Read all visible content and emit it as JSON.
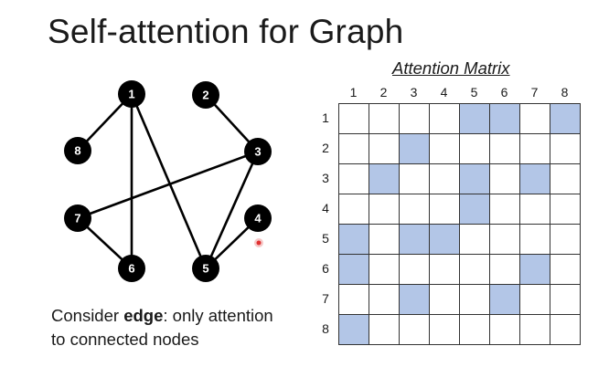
{
  "title": "Self-attention for Graph",
  "caption": {
    "line1_prefix": "Consider ",
    "line1_bold": "edge",
    "line1_suffix": ": only attention",
    "line2": "to connected nodes"
  },
  "graph": {
    "node_color": "#000000",
    "edge_color": "#000000",
    "nodes": [
      "1",
      "2",
      "3",
      "4",
      "5",
      "6",
      "7",
      "8"
    ],
    "edges": [
      [
        "1",
        "8"
      ],
      [
        "1",
        "6"
      ],
      [
        "1",
        "5"
      ],
      [
        "2",
        "3"
      ],
      [
        "3",
        "7"
      ],
      [
        "3",
        "5"
      ],
      [
        "4",
        "5"
      ],
      [
        "7",
        "6"
      ]
    ]
  },
  "matrix": {
    "title": "Attention Matrix",
    "labels": [
      "1",
      "2",
      "3",
      "4",
      "5",
      "6",
      "7",
      "8"
    ],
    "highlight_color": "#b3c6e7",
    "cells": [
      [
        0,
        0,
        0,
        0,
        1,
        1,
        0,
        1
      ],
      [
        0,
        0,
        1,
        0,
        0,
        0,
        0,
        0
      ],
      [
        0,
        1,
        0,
        0,
        1,
        0,
        1,
        0
      ],
      [
        0,
        0,
        0,
        0,
        1,
        0,
        0,
        0
      ],
      [
        1,
        0,
        1,
        1,
        0,
        0,
        0,
        0
      ],
      [
        1,
        0,
        0,
        0,
        0,
        0,
        1,
        0
      ],
      [
        0,
        0,
        1,
        0,
        0,
        1,
        0,
        0
      ],
      [
        1,
        0,
        0,
        0,
        0,
        0,
        0,
        0
      ]
    ]
  },
  "cursor_color": "#e03030"
}
